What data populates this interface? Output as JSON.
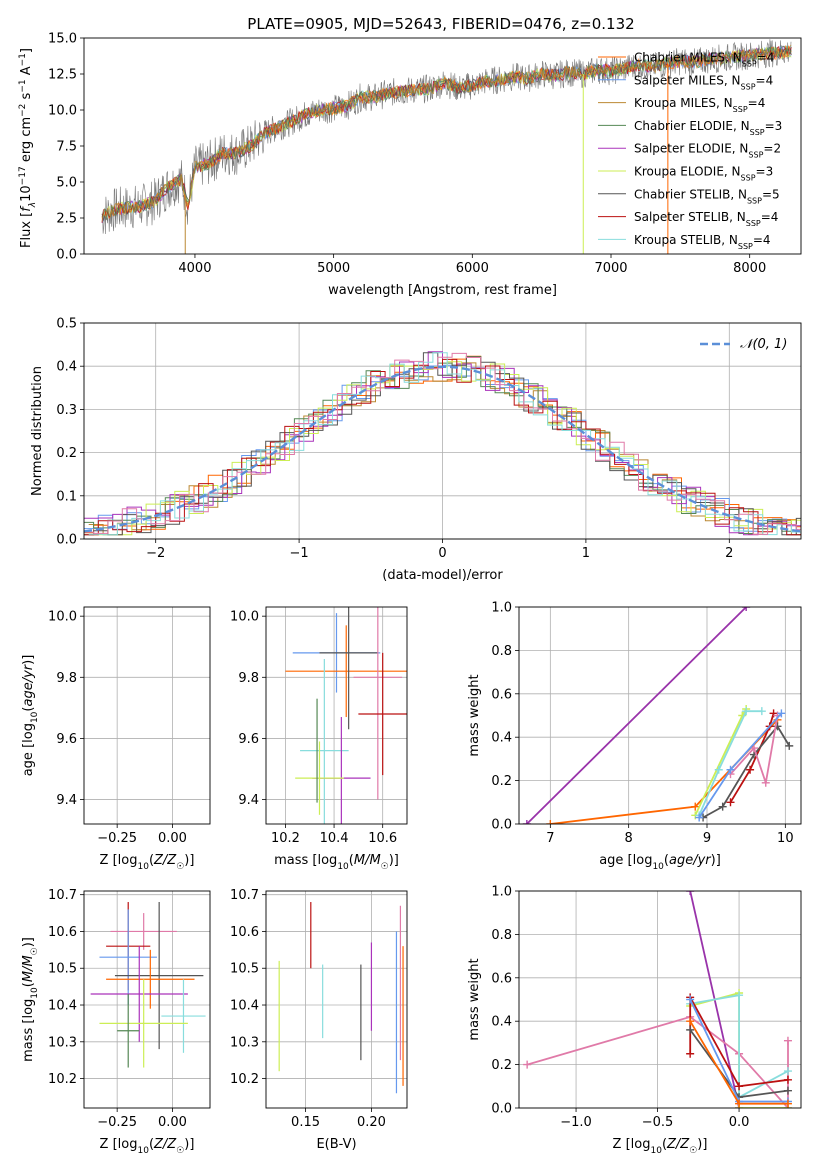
{
  "title": "PLATE=0905, MJD=52643, FIBERID=0476, z=0.132",
  "colors": {
    "chabrier_miles": "#ff6600",
    "salpeter_miles": "#6699ee",
    "kroupa_miles": "#bb8833",
    "chabrier_elodie": "#558855",
    "salpeter_elodie": "#aa33bb",
    "kroupa_elodie": "#ccee55",
    "chabrier_stelib": "#555555",
    "salpeter_stelib": "#bb1111",
    "kroupa_stelib": "#88dddd",
    "normal": "#5b8fd8",
    "pink": "#e07aa8",
    "purple": "#9933aa",
    "data": "#777777"
  },
  "chart_data": [
    {
      "type": "line",
      "title": "PLATE=0905, MJD=52643, FIBERID=0476, z=0.132",
      "xlabel": "wavelength [Angstrom, rest frame]",
      "ylabel": "Flux [f_λ 10^-17 erg cm^-2 s^-1 A^-1]",
      "xlim": [
        3200,
        8370
      ],
      "ylim": [
        0,
        15
      ],
      "xticks": [
        "4000",
        "5000",
        "6000",
        "7000",
        "8000"
      ],
      "yticks": [
        "0.0",
        "2.5",
        "5.0",
        "7.5",
        "10.0",
        "12.5",
        "15.0"
      ],
      "legend_position": "top-right",
      "legend": [
        {
          "label": "Chabrier MILES, N",
          "sub": "SSP",
          "suffix": "=4",
          "color_key": "chabrier_miles"
        },
        {
          "label": "Salpeter MILES, N",
          "sub": "SSP",
          "suffix": "=4",
          "color_key": "salpeter_miles"
        },
        {
          "label": "Kroupa MILES, N",
          "sub": "SSP",
          "suffix": "=4",
          "color_key": "kroupa_miles"
        },
        {
          "label": "Chabrier ELODIE, N",
          "sub": "SSP",
          "suffix": "=3",
          "color_key": "chabrier_elodie"
        },
        {
          "label": "Salpeter ELODIE, N",
          "sub": "SSP",
          "suffix": "=2",
          "color_key": "salpeter_elodie"
        },
        {
          "label": "Kroupa ELODIE, N",
          "sub": "SSP",
          "suffix": "=3",
          "color_key": "kroupa_elodie"
        },
        {
          "label": "Chabrier STELIB, N",
          "sub": "SSP",
          "suffix": "=5",
          "color_key": "chabrier_stelib"
        },
        {
          "label": "Salpeter STELIB, N",
          "sub": "SSP",
          "suffix": "=4",
          "color_key": "salpeter_stelib"
        },
        {
          "label": "Kroupa STELIB, N",
          "sub": "SSP",
          "suffix": "=4",
          "color_key": "kroupa_stelib"
        }
      ],
      "model_curve": {
        "x": [
          3330,
          3400,
          3500,
          3600,
          3700,
          3800,
          3900,
          3950,
          4000,
          4100,
          4200,
          4300,
          4400,
          4500,
          4600,
          4700,
          4800,
          4900,
          5000,
          5100,
          5200,
          5300,
          5400,
          5500,
          5600,
          5700,
          5800,
          5900,
          6000,
          6100,
          6200,
          6300,
          6400,
          6500,
          6600,
          6700,
          6800,
          6900,
          7000,
          7100,
          7200,
          7300,
          7400,
          7500,
          7600,
          7700,
          7800,
          7900,
          8000,
          8100,
          8200,
          8300
        ],
        "y": [
          2.6,
          3.0,
          3.2,
          3.3,
          3.6,
          4.6,
          5.2,
          3.4,
          6.0,
          6.3,
          7.0,
          7.0,
          7.5,
          8.4,
          8.8,
          9.2,
          9.7,
          10.0,
          10.1,
          10.3,
          10.9,
          10.9,
          11.2,
          11.3,
          11.4,
          11.5,
          11.9,
          11.5,
          11.7,
          12.0,
          12.1,
          12.3,
          12.2,
          12.5,
          12.4,
          12.6,
          12.5,
          12.8,
          12.7,
          12.9,
          13.1,
          13.0,
          13.2,
          13.4,
          13.3,
          13.5,
          13.6,
          13.7,
          13.8,
          13.9,
          14.0,
          14.1
        ]
      }
    },
    {
      "type": "line",
      "xlabel": "(data-model)/error",
      "ylabel": "Normed distribution",
      "xlim": [
        -2.5,
        2.5
      ],
      "ylim": [
        0,
        0.5
      ],
      "xticks": [
        "−2",
        "−1",
        "0",
        "1",
        "2"
      ],
      "yticks": [
        "0.0",
        "0.1",
        "0.2",
        "0.3",
        "0.4",
        "0.5"
      ],
      "legend": [
        {
          "label": "𝒩(0, 1)",
          "color_key": "normal"
        }
      ],
      "legend_position": "top-right",
      "normal": {
        "mean": 0,
        "sd": 1
      }
    },
    {
      "type": "scatter",
      "xlabel": "Z [log10(Z/Z☉)]",
      "ylabel": "age  [log10(age/yr)]",
      "xlim": [
        -0.4,
        0.17
      ],
      "ylim": [
        9.32,
        10.03
      ],
      "xticks": [
        "−0.25",
        "0.00"
      ],
      "yticks": [
        "9.4",
        "9.6",
        "9.8",
        "10.0"
      ],
      "points": [
        {
          "color_key": "salpeter_miles",
          "x": -0.25,
          "xerr": 0.07,
          "y": 9.88,
          "yerr": 0.13
        },
        {
          "color_key": "chabrier_miles",
          "x": -0.05,
          "xerr": 0.15,
          "y": 9.82,
          "yerr": 0.15
        },
        {
          "color_key": "chabrier_stelib",
          "x": -0.17,
          "xerr": 0.18,
          "y": 9.88,
          "yerr": 0.25
        },
        {
          "color_key": "pink",
          "x": -0.05,
          "xerr": 0.05,
          "y": 9.8,
          "yerr": 0.4
        },
        {
          "color_key": "salpeter_stelib",
          "x": -0.14,
          "xerr": 0.1,
          "y": 9.68,
          "yerr": 0.2
        },
        {
          "color_key": "kroupa_stelib",
          "x": 0.0,
          "xerr": 0.15,
          "y": 9.56,
          "yerr": 0.33
        },
        {
          "color_key": "salpeter_elodie",
          "x": -0.3,
          "xerr": 0.05,
          "y": 9.47,
          "yerr": 0.2
        },
        {
          "color_key": "kroupa_elodie",
          "x": -0.11,
          "xerr": 0.23,
          "y": 9.47,
          "yerr": 0.1
        },
        {
          "color_key": "chabrier_elodie",
          "x": -0.09,
          "xerr": 0.0,
          "y": 9.61,
          "yerr": 0.12
        }
      ]
    },
    {
      "type": "scatter",
      "xlabel": "mass [log10(M/M☉)]",
      "ylabel": "",
      "xlim": [
        10.12,
        10.7
      ],
      "ylim": [
        9.32,
        10.03
      ],
      "xticks": [
        "10.2",
        "10.4",
        "10.6"
      ],
      "yticks": [
        "9.4",
        "9.6",
        "9.8",
        "10.0"
      ],
      "points": [
        {
          "color_key": "salpeter_miles",
          "x": 10.41,
          "xerr": 0.18,
          "y": 9.88,
          "yerr": 0.13
        },
        {
          "color_key": "chabrier_miles",
          "x": 10.45,
          "xerr": 0.25,
          "y": 9.82,
          "yerr": 0.15
        },
        {
          "color_key": "chabrier_stelib",
          "x": 10.46,
          "xerr": 0.12,
          "y": 9.88,
          "yerr": 0.25
        },
        {
          "color_key": "pink",
          "x": 10.58,
          "xerr": 0.1,
          "y": 9.8,
          "yerr": 0.4
        },
        {
          "color_key": "salpeter_stelib",
          "x": 10.6,
          "xerr": 0.1,
          "y": 9.68,
          "yerr": 0.2
        },
        {
          "color_key": "kroupa_stelib",
          "x": 10.36,
          "xerr": 0.1,
          "y": 9.56,
          "yerr": 0.3
        },
        {
          "color_key": "salpeter_elodie",
          "x": 10.43,
          "xerr": 0.12,
          "y": 9.47,
          "yerr": 0.2
        },
        {
          "color_key": "kroupa_elodie",
          "x": 10.34,
          "xerr": 0.1,
          "y": 9.47,
          "yerr": 0.12
        },
        {
          "color_key": "chabrier_elodie",
          "x": 10.33,
          "xerr": 0.0,
          "y": 9.56,
          "yerr": 0.17
        }
      ]
    },
    {
      "type": "line",
      "xlabel": "age  [log10(age/yr)]",
      "ylabel": "mass weight",
      "xlim": [
        6.6,
        10.2
      ],
      "ylim": [
        0,
        1
      ],
      "xticks": [
        "7",
        "8",
        "9",
        "10"
      ],
      "yticks": [
        "0.0",
        "0.2",
        "0.4",
        "0.6",
        "0.8",
        "1.0"
      ],
      "series": [
        {
          "color_key": "purple",
          "x": [
            6.7,
            9.5
          ],
          "y": [
            0.0,
            1.0
          ]
        },
        {
          "color_key": "chabrier_miles",
          "x": [
            7.0,
            8.85,
            9.9
          ],
          "y": [
            0.0,
            0.08,
            0.48
          ]
        },
        {
          "color_key": "kroupa_elodie",
          "x": [
            8.85,
            9.45,
            9.5
          ],
          "y": [
            0.04,
            0.5,
            0.53
          ]
        },
        {
          "color_key": "kroupa_stelib",
          "x": [
            8.9,
            9.15,
            9.5,
            9.7
          ],
          "y": [
            0.04,
            0.25,
            0.52,
            0.52
          ]
        },
        {
          "color_key": "salpeter_stelib",
          "x": [
            9.3,
            9.55,
            9.8,
            9.85
          ],
          "y": [
            0.1,
            0.25,
            0.45,
            0.51
          ]
        },
        {
          "color_key": "chabrier_stelib",
          "x": [
            8.95,
            9.2,
            9.6,
            9.9,
            10.05
          ],
          "y": [
            0.03,
            0.08,
            0.32,
            0.45,
            0.36
          ]
        },
        {
          "color_key": "pink",
          "x": [
            9.3,
            9.6,
            9.75,
            9.9
          ],
          "y": [
            0.23,
            0.35,
            0.19,
            0.5
          ]
        },
        {
          "color_key": "salpeter_miles",
          "x": [
            8.9,
            9.3,
            9.95
          ],
          "y": [
            0.03,
            0.25,
            0.51
          ]
        }
      ]
    },
    {
      "type": "scatter",
      "xlabel": "Z [log10(Z/Z☉)]",
      "ylabel": "mass [log10(M/M☉)]",
      "xlim": [
        -0.4,
        0.17
      ],
      "ylim": [
        10.12,
        10.71
      ],
      "xticks": [
        "−0.25",
        "0.00"
      ],
      "yticks": [
        "10.2",
        "10.3",
        "10.4",
        "10.5",
        "10.6",
        "10.7"
      ],
      "points": [
        {
          "color_key": "pink",
          "x": -0.13,
          "xerr": 0.15,
          "y": 10.6,
          "yerr": 0.05
        },
        {
          "color_key": "salpeter_stelib",
          "x": -0.2,
          "xerr": 0.1,
          "y": 10.56,
          "yerr": 0.12
        },
        {
          "color_key": "salpeter_miles",
          "x": -0.2,
          "xerr": 0.13,
          "y": 10.53,
          "yerr": 0.13
        },
        {
          "color_key": "chabrier_stelib",
          "x": -0.06,
          "xerr": 0.2,
          "y": 10.48,
          "yerr": 0.2
        },
        {
          "color_key": "chabrier_miles",
          "x": -0.1,
          "xerr": 0.2,
          "y": 10.47,
          "yerr": 0.08
        },
        {
          "color_key": "salpeter_elodie",
          "x": -0.15,
          "xerr": 0.22,
          "y": 10.43,
          "yerr": 0.13
        },
        {
          "color_key": "kroupa_stelib",
          "x": 0.05,
          "xerr": 0.1,
          "y": 10.37,
          "yerr": 0.1
        },
        {
          "color_key": "kroupa_elodie",
          "x": -0.13,
          "xerr": 0.2,
          "y": 10.35,
          "yerr": 0.12
        },
        {
          "color_key": "chabrier_elodie",
          "x": -0.2,
          "xerr": 0.05,
          "y": 10.33,
          "yerr": 0.1
        }
      ]
    },
    {
      "type": "scatter",
      "xlabel": "E(B-V)",
      "ylabel": "",
      "xlim": [
        0.12,
        0.227
      ],
      "ylim": [
        10.12,
        10.71
      ],
      "xticks": [
        "0.15",
        "0.20"
      ],
      "yticks": [
        "10.2",
        "10.3",
        "10.4",
        "10.5",
        "10.6",
        "10.7"
      ],
      "points": [
        {
          "color_key": "kroupa_elodie",
          "x": 0.13,
          "xerr": 0,
          "y": 10.37,
          "yerr": 0.15
        },
        {
          "color_key": "salpeter_stelib",
          "x": 0.154,
          "xerr": 0,
          "y": 10.59,
          "yerr": 0.09
        },
        {
          "color_key": "kroupa_stelib",
          "x": 0.163,
          "xerr": 0,
          "y": 10.41,
          "yerr": 0.1
        },
        {
          "color_key": "chabrier_stelib",
          "x": 0.192,
          "xerr": 0,
          "y": 10.38,
          "yerr": 0.13
        },
        {
          "color_key": "salpeter_elodie",
          "x": 0.2,
          "xerr": 0,
          "y": 10.45,
          "yerr": 0.12
        },
        {
          "color_key": "salpeter_miles",
          "x": 0.219,
          "xerr": 0,
          "y": 10.38,
          "yerr": 0.22
        },
        {
          "color_key": "pink",
          "x": 0.222,
          "xerr": 0,
          "y": 10.46,
          "yerr": 0.21
        },
        {
          "color_key": "chabrier_miles",
          "x": 0.224,
          "xerr": 0,
          "y": 10.37,
          "yerr": 0.19
        }
      ]
    },
    {
      "type": "line",
      "xlabel": "Z [log10(Z/Z☉)]",
      "ylabel": "mass weight",
      "xlim": [
        -1.35,
        0.38
      ],
      "ylim": [
        0,
        1
      ],
      "xticks": [
        "−1.0",
        "−0.5",
        "0.0"
      ],
      "yticks": [
        "0.0",
        "0.2",
        "0.4",
        "0.6",
        "0.8",
        "1.0"
      ],
      "series": [
        {
          "color_key": "purple",
          "x": [
            -0.3,
            0.0
          ],
          "y": [
            1.0,
            0.0
          ]
        },
        {
          "color_key": "pink",
          "x": [
            -1.3,
            -0.3,
            0.0,
            0.3,
            0.3
          ],
          "y": [
            0.2,
            0.42,
            0.25,
            0.0,
            0.31
          ]
        },
        {
          "color_key": "kroupa_elodie",
          "x": [
            -0.3,
            0.0,
            0.0,
            0.3
          ],
          "y": [
            0.47,
            0.53,
            0.0,
            0.0
          ]
        },
        {
          "color_key": "kroupa_stelib",
          "x": [
            -0.3,
            0.0,
            0.0,
            0.3
          ],
          "y": [
            0.48,
            0.52,
            0.05,
            0.17
          ]
        },
        {
          "color_key": "salpeter_stelib",
          "x": [
            -0.3,
            -0.3,
            0.0,
            0.3
          ],
          "y": [
            0.25,
            0.51,
            0.1,
            0.13
          ]
        },
        {
          "color_key": "chabrier_stelib",
          "x": [
            -0.3,
            0.0,
            0.3
          ],
          "y": [
            0.36,
            0.05,
            0.08
          ]
        },
        {
          "color_key": "salpeter_miles",
          "x": [
            -0.3,
            0.0,
            0.3
          ],
          "y": [
            0.5,
            0.03,
            0.03
          ]
        },
        {
          "color_key": "chabrier_miles",
          "x": [
            -0.3,
            0.0,
            0.3
          ],
          "y": [
            0.4,
            0.02,
            0.02
          ]
        }
      ]
    }
  ]
}
